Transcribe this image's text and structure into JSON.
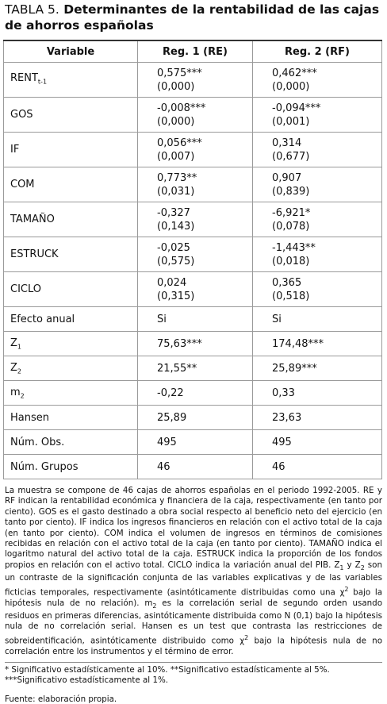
{
  "title": {
    "label": "TABLA 5.",
    "text": "Determinantes de la rentabilidad de las cajas de ahorros españolas"
  },
  "table": {
    "headers": [
      "Variable",
      "Reg. 1 (RE)",
      "Reg. 2 (RF)"
    ],
    "rows": [
      {
        "variable": {
          "name": "RENT",
          "sub": "t-1"
        },
        "reg1": [
          "0,575***",
          "(0,000)"
        ],
        "reg2": [
          "0,462***",
          "(0,000)"
        ]
      },
      {
        "variable": {
          "name": "GOS"
        },
        "reg1": [
          "-0,008***",
          "(0,000)"
        ],
        "reg2": [
          "-0,094***",
          "(0,001)"
        ]
      },
      {
        "variable": {
          "name": "IF"
        },
        "reg1": [
          "0,056***",
          "(0,007)"
        ],
        "reg2": [
          "0,314",
          "(0,677)"
        ]
      },
      {
        "variable": {
          "name": "COM"
        },
        "reg1": [
          "0,773**",
          "(0,031)"
        ],
        "reg2": [
          "0,907",
          "(0,839)"
        ]
      },
      {
        "variable": {
          "name": "TAMAÑO"
        },
        "reg1": [
          "-0,327",
          "(0,143)"
        ],
        "reg2": [
          "-6,921*",
          "(0,078)"
        ]
      },
      {
        "variable": {
          "name": "ESTRUCK"
        },
        "reg1": [
          "-0,025",
          "(0,575)"
        ],
        "reg2": [
          "-1,443**",
          "(0,018)"
        ]
      },
      {
        "variable": {
          "name": "CICLO"
        },
        "reg1": [
          "0,024",
          "(0,315)"
        ],
        "reg2": [
          "0,365",
          "(0,518)"
        ]
      },
      {
        "variable": {
          "name": "Efecto anual"
        },
        "reg1": [
          "Si"
        ],
        "reg2": [
          "Si"
        ]
      },
      {
        "variable": {
          "name": "Z",
          "sub": "1"
        },
        "reg1": [
          "75,63***"
        ],
        "reg2": [
          "174,48***"
        ]
      },
      {
        "variable": {
          "name": "Z",
          "sub": "2"
        },
        "reg1": [
          "21,55**"
        ],
        "reg2": [
          "25,89***"
        ]
      },
      {
        "variable": {
          "name": "m",
          "sub": "2"
        },
        "reg1": [
          "-0,22"
        ],
        "reg2": [
          "0,33"
        ]
      },
      {
        "variable": {
          "name": "Hansen"
        },
        "reg1": [
          "25,89"
        ],
        "reg2": [
          "23,63"
        ]
      },
      {
        "variable": {
          "name": "Núm. Obs."
        },
        "reg1": [
          "495"
        ],
        "reg2": [
          "495"
        ]
      },
      {
        "variable": {
          "name": "Núm. Grupos"
        },
        "reg1": [
          "46"
        ],
        "reg2": [
          "46"
        ]
      }
    ]
  },
  "note": [
    {
      "text": "La muestra se compone de 46 cajas de ahorros españolas en el periodo 1992-2005. RE y RF indican la rentabilidad económica y financiera de la caja, respectivamente (en tanto por ciento). GOS es el gasto destinado a obra social respecto al beneficio neto del ejercicio (en tanto por ciento). IF indica los ingresos financieros en relación con el activo total de la caja (en tanto por ciento). COM indica el volumen de ingresos en términos de comisiones recibidas en relación con el activo total de la caja (en tanto por ciento). TAMAÑO indica el logaritmo natural del activo total de la caja. ESTRUCK indica la proporción de los fondos propios en relación con el activo total. CICLO indica la variación anual del PIB. Z"
    },
    {
      "sub": "1"
    },
    {
      "text": " y Z"
    },
    {
      "sub": "2"
    },
    {
      "text": " son un contraste de la significación conjunta de las variables explicativas y de las variables ficticias temporales, respectivamente (asintóticamente distribuidas como una χ"
    },
    {
      "sup": "2"
    },
    {
      "text": " bajo la hipótesis nula de no relación). m"
    },
    {
      "sub": "2"
    },
    {
      "text": " es la correlación serial de segundo orden usando residuos en primeras diferencias, asintóticamente distribuida como N (0,1) bajo la hipótesis nula de no correlación serial. Hansen es un test que contrasta las restricciones de sobreidentificación, asintóticamente distribuido como χ"
    },
    {
      "sup": "2"
    },
    {
      "text": " bajo la hipótesis nula de no correlación entre los instrumentos y el término de error."
    }
  ],
  "significance": "* Significativo estadísticamente al 10%. **Significativo estadísticamente al 5%. ***Significativo estadísticamente al 1%.",
  "source": "Fuente: elaboración propia."
}
